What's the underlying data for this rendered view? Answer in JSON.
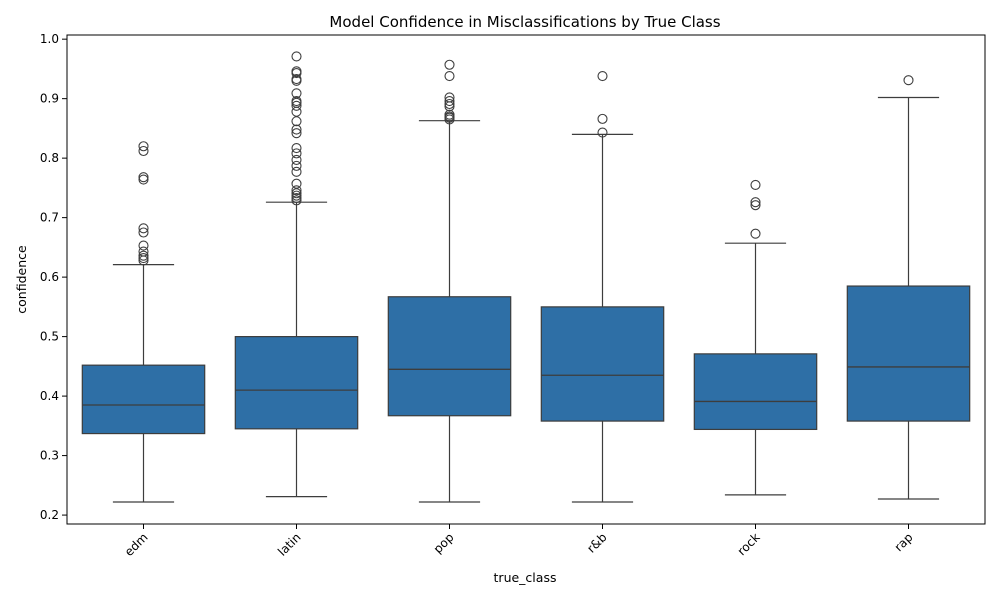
{
  "chart_data": {
    "type": "box",
    "title": "Model Confidence in Misclassifications by True Class",
    "xlabel": "true_class",
    "ylabel": "confidence",
    "ylim": [
      0.185,
      1.007
    ],
    "yticks": [
      0.2,
      0.3,
      0.4,
      0.5,
      0.6,
      0.7,
      0.8,
      0.9,
      1.0
    ],
    "ytick_labels": [
      "0.2",
      "0.3",
      "0.4",
      "0.5",
      "0.6",
      "0.7",
      "0.8",
      "0.9",
      "1.0"
    ],
    "box_color": "#2e6fa6",
    "categories": [
      "edm",
      "latin",
      "pop",
      "r&b",
      "rock",
      "rap"
    ],
    "boxes": [
      {
        "category": "edm",
        "whisker_low": 0.222,
        "q1": 0.337,
        "median": 0.385,
        "q3": 0.452,
        "whisker_high": 0.621,
        "outliers": [
          0.628,
          0.632,
          0.636,
          0.643,
          0.653,
          0.675,
          0.682,
          0.764,
          0.768,
          0.812,
          0.82
        ]
      },
      {
        "category": "latin",
        "whisker_low": 0.231,
        "q1": 0.345,
        "median": 0.41,
        "q3": 0.5,
        "whisker_high": 0.726,
        "outliers": [
          0.729,
          0.733,
          0.737,
          0.741,
          0.746,
          0.757,
          0.777,
          0.787,
          0.797,
          0.808,
          0.817,
          0.842,
          0.848,
          0.862,
          0.878,
          0.888,
          0.893,
          0.896,
          0.909,
          0.93,
          0.933,
          0.943,
          0.946,
          0.971
        ]
      },
      {
        "category": "pop",
        "whisker_low": 0.222,
        "q1": 0.367,
        "median": 0.445,
        "q3": 0.567,
        "whisker_high": 0.863,
        "outliers": [
          0.865,
          0.868,
          0.87,
          0.873,
          0.887,
          0.891,
          0.896,
          0.902,
          0.938,
          0.957
        ]
      },
      {
        "category": "r&b",
        "whisker_low": 0.222,
        "q1": 0.358,
        "median": 0.435,
        "q3": 0.55,
        "whisker_high": 0.84,
        "outliers": [
          0.843,
          0.866,
          0.938
        ]
      },
      {
        "category": "rock",
        "whisker_low": 0.234,
        "q1": 0.344,
        "median": 0.391,
        "q3": 0.471,
        "whisker_high": 0.657,
        "outliers": [
          0.673,
          0.721,
          0.726,
          0.755
        ]
      },
      {
        "category": "rap",
        "whisker_low": 0.227,
        "q1": 0.358,
        "median": 0.449,
        "q3": 0.585,
        "whisker_high": 0.902,
        "outliers": [
          0.931
        ]
      }
    ],
    "grid": false,
    "legend": "none"
  }
}
